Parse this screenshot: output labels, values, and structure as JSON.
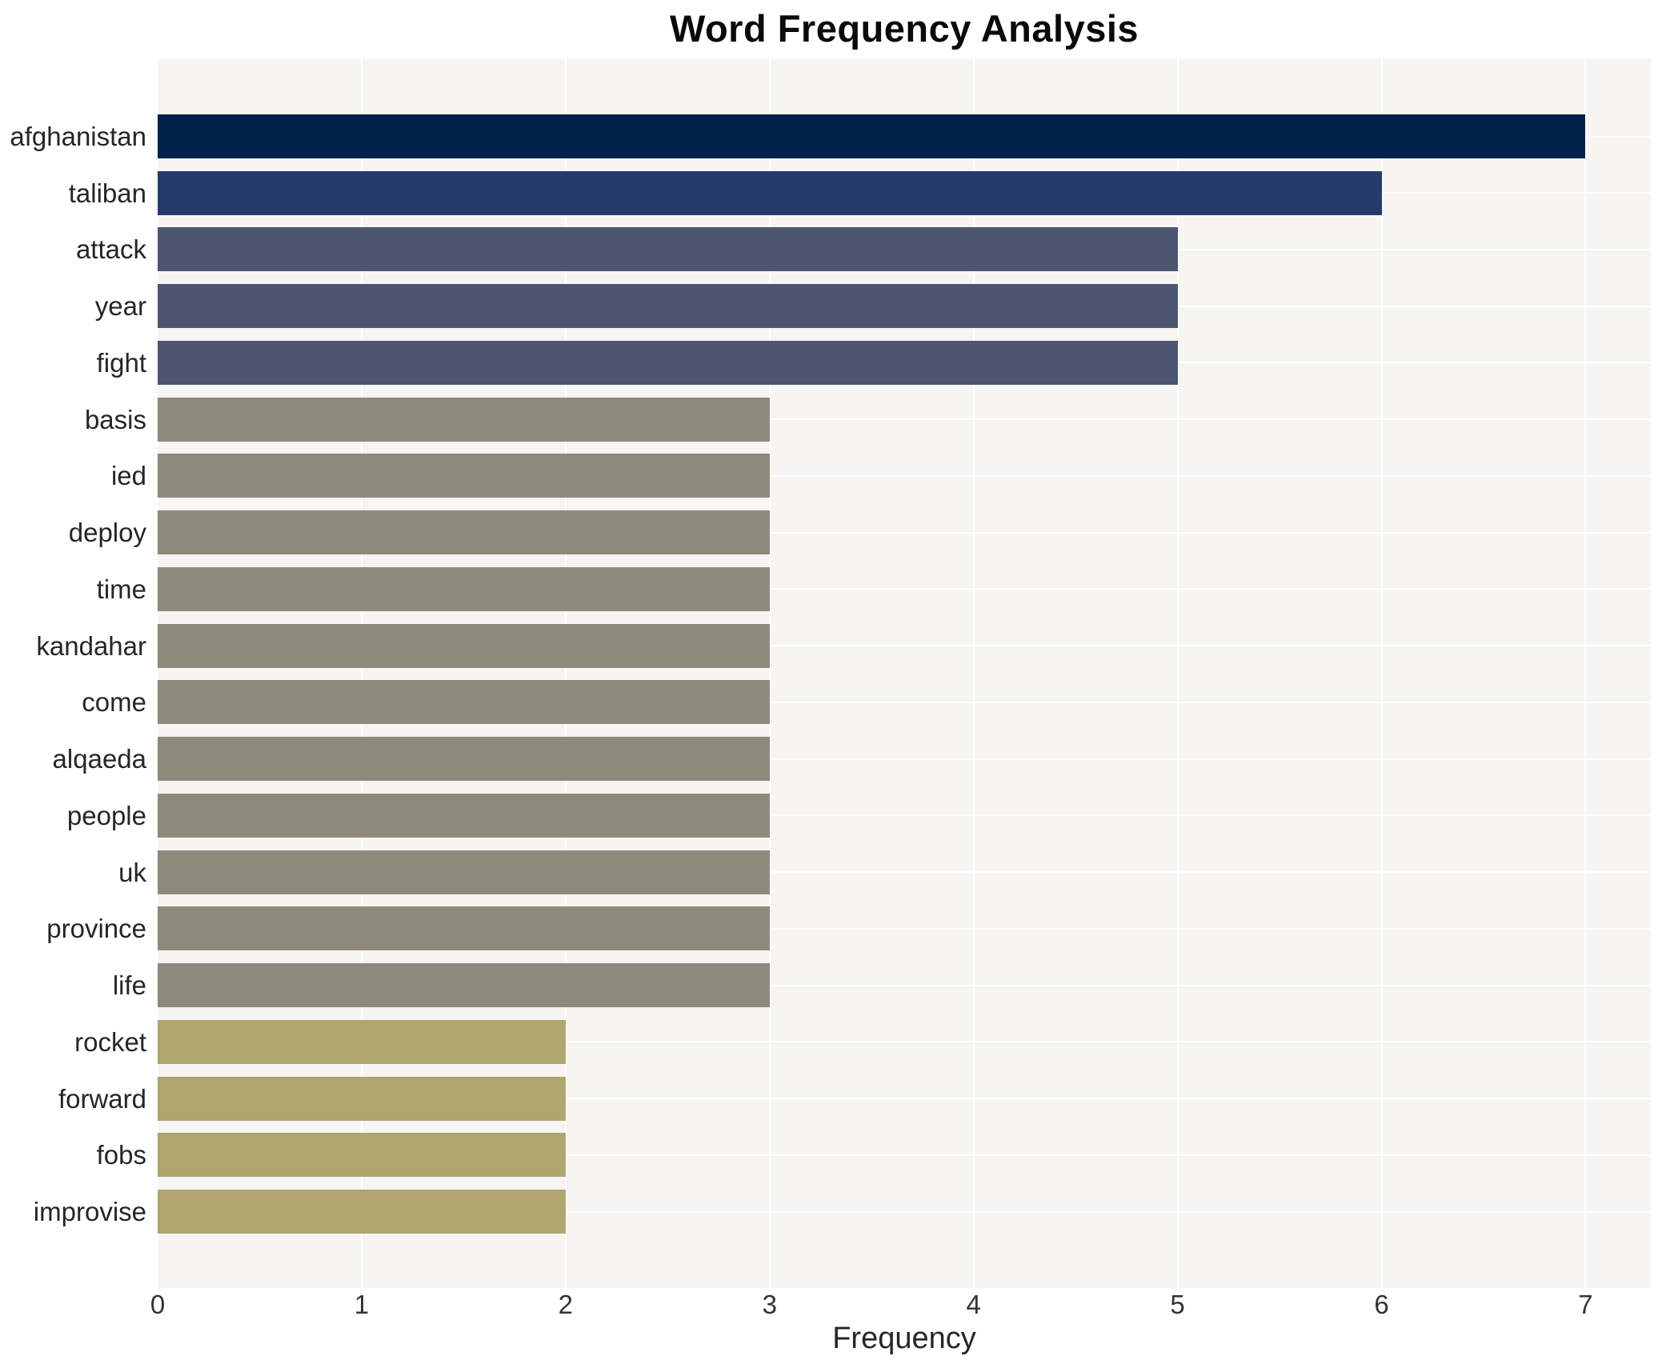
{
  "chart_data": {
    "type": "bar",
    "orientation": "horizontal",
    "title": "Word Frequency Analysis",
    "xlabel": "Frequency",
    "ylabel": "",
    "categories": [
      "afghanistan",
      "taliban",
      "attack",
      "year",
      "fight",
      "basis",
      "ied",
      "deploy",
      "time",
      "kandahar",
      "come",
      "alqaeda",
      "people",
      "uk",
      "province",
      "life",
      "rocket",
      "forward",
      "fobs",
      "improvise"
    ],
    "values": [
      7,
      6,
      5,
      5,
      5,
      3,
      3,
      3,
      3,
      3,
      3,
      3,
      3,
      3,
      3,
      3,
      2,
      2,
      2,
      2
    ],
    "xticks": [
      0,
      1,
      2,
      3,
      4,
      5,
      6,
      7
    ],
    "xlim": [
      0,
      7.32
    ],
    "grid": true,
    "legend": false,
    "bar_colors_by_value": {
      "7": "#02224b",
      "6": "#253c6b",
      "5": "#4d566e",
      "3": "#8e897a",
      "2": "#b0a56e"
    }
  },
  "style": {
    "panel_bg": "#f6f5f3",
    "grid_color": "#ffffff",
    "tick_text_color": "#333333",
    "label_text_color": "#262626",
    "title_color": "#0a0a0a",
    "page_bg": "#ffffff"
  }
}
